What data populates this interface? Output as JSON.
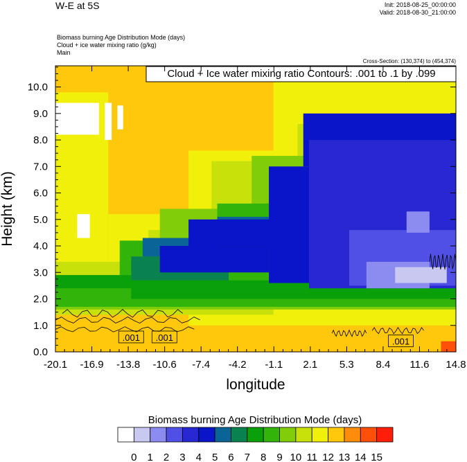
{
  "header": {
    "title": "W-E at 5S",
    "init": "Init: 2018-08-25_00:00:00",
    "valid": "Valid: 2018-08-30_21:00:00",
    "subtitle_lines": [
      "Biomass burning Age Distribution Mode   (days)",
      "Cloud + ice water mixing ratio   (g/kg)",
      "Main"
    ],
    "cross_section": "Cross-Section: (130,374) to (454,374)"
  },
  "chart_data": {
    "type": "heatmap",
    "xlabel": "longitude",
    "ylabel": "Height (km)",
    "x_ticks": [
      "-20.1",
      "-16.9",
      "-13.8",
      "-10.6",
      "-7.4",
      "-4.2",
      "-1.1",
      "2.1",
      "5.3",
      "8.4",
      "11.6",
      "14.8"
    ],
    "y_ticks": [
      "0.0",
      "1.0",
      "2.0",
      "3.0",
      "4.0",
      "5.0",
      "6.0",
      "7.0",
      "8.0",
      "9.0",
      "10.0"
    ],
    "xlim": [
      -20.1,
      14.8
    ],
    "ylim": [
      0,
      10.8
    ],
    "contour_info": "Cloud + Ice water mixing ratio Contours: .001 to .1 by .099",
    "contour_labels": [
      {
        "text": ".001",
        "x": -13.5,
        "y": 0.55
      },
      {
        "text": ".001",
        "x": -10.6,
        "y": 0.55
      },
      {
        "text": ".001",
        "x": 10.0,
        "y": 0.4
      }
    ],
    "colorbar": {
      "title": "Biomass burning Age Distribution Mode  (days)",
      "labels": [
        "0",
        "1",
        "2",
        "3",
        "4",
        "5",
        "6",
        "7",
        "8",
        "9",
        "10",
        "11",
        "12",
        "13",
        "14",
        "15"
      ],
      "colors": [
        "#ffffff",
        "#c8c8f0",
        "#8c8cf0",
        "#5050e6",
        "#2828d2",
        "#0a14c8",
        "#0a6496",
        "#0a8250",
        "#0aa00a",
        "#32b40a",
        "#82cd0a",
        "#c8e10a",
        "#f0f00a",
        "#ffc80a",
        "#ff8c0a",
        "#ff500a",
        "#ff1e0a"
      ]
    },
    "regions": [
      {
        "level": 13,
        "x0": -20.1,
        "x1": 14.8,
        "y0": 0,
        "y1": 10.8
      },
      {
        "level": 12,
        "x0": -20.1,
        "x1": -15.5,
        "y0": 1.6,
        "y1": 9.8
      },
      {
        "level": 12,
        "x0": -15.5,
        "x1": -8.5,
        "y0": 1.6,
        "y1": 5.2
      },
      {
        "level": 12,
        "x0": -8.5,
        "x1": 14.8,
        "y0": 1.0,
        "y1": 7.6
      },
      {
        "level": 12,
        "x0": -1.1,
        "x1": 14.8,
        "y0": 7.0,
        "y1": 10.8
      },
      {
        "level": 11,
        "x0": -20.1,
        "x1": -12.0,
        "y0": 1.4,
        "y1": 3.4
      },
      {
        "level": 11,
        "x0": -12.0,
        "x1": -1.1,
        "y0": 1.4,
        "y1": 4.6
      },
      {
        "level": 11,
        "x0": -6.5,
        "x1": 2.8,
        "y0": 4.6,
        "y1": 7.2
      },
      {
        "level": 11,
        "x0": 1.0,
        "x1": 14.8,
        "y0": 7.2,
        "y1": 8.6
      },
      {
        "level": 10,
        "x0": -20.1,
        "x1": 14.8,
        "y0": 1.6,
        "y1": 2.4
      },
      {
        "level": 10,
        "x0": -11.0,
        "x1": 3.0,
        "y0": 2.4,
        "y1": 5.4
      },
      {
        "level": 10,
        "x0": -3.0,
        "x1": 4.5,
        "y0": 5.4,
        "y1": 7.4
      },
      {
        "level": 9,
        "x0": -20.1,
        "x1": 14.8,
        "y0": 1.7,
        "y1": 2.6
      },
      {
        "level": 9,
        "x0": -14.5,
        "x1": 4.0,
        "y0": 2.6,
        "y1": 4.2
      },
      {
        "level": 9,
        "x0": -6.0,
        "x1": 4.0,
        "y0": 4.2,
        "y1": 5.6
      },
      {
        "level": 8,
        "x0": -20.1,
        "x1": -13.5,
        "y0": 2.4,
        "y1": 2.9
      },
      {
        "level": 8,
        "x0": -13.5,
        "x1": 14.8,
        "y0": 2.0,
        "y1": 2.7
      },
      {
        "level": 7,
        "x0": -13.5,
        "x1": -5.0,
        "y0": 2.7,
        "y1": 3.6
      },
      {
        "level": 6,
        "x0": -12.5,
        "x1": -6.0,
        "y0": 3.6,
        "y1": 4.3
      },
      {
        "level": 6,
        "x0": -6.0,
        "x1": 1.5,
        "y0": 4.3,
        "y1": 5.1
      },
      {
        "level": 5,
        "x0": -11.0,
        "x1": -1.5,
        "y0": 3.0,
        "y1": 4.0
      },
      {
        "level": 5,
        "x0": -8.5,
        "x1": 2.0,
        "y0": 4.0,
        "y1": 5.0
      },
      {
        "level": 5,
        "x0": -1.5,
        "x1": 14.8,
        "y0": 2.6,
        "y1": 7.0
      },
      {
        "level": 5,
        "x0": 1.5,
        "x1": 14.8,
        "y0": 7.0,
        "y1": 9.0
      },
      {
        "level": 4,
        "x0": 2.0,
        "x1": 14.8,
        "y0": 2.4,
        "y1": 8.0
      },
      {
        "level": 3,
        "x0": 5.5,
        "x1": 14.8,
        "y0": 2.5,
        "y1": 4.6
      },
      {
        "level": 2,
        "x0": 7.0,
        "x1": 12.5,
        "y0": 2.4,
        "y1": 3.4
      },
      {
        "level": 2,
        "x0": 10.5,
        "x1": 12.5,
        "y0": 4.5,
        "y1": 5.3
      },
      {
        "level": 1,
        "x0": 9.5,
        "x1": 14.0,
        "y0": 2.6,
        "y1": 3.2
      },
      {
        "level": 0,
        "x0": -20.1,
        "x1": -16.3,
        "y0": 8.2,
        "y1": 9.4
      },
      {
        "level": 0,
        "x0": -15.8,
        "x1": -15.2,
        "y0": 8.0,
        "y1": 9.4
      },
      {
        "level": 0,
        "x0": -14.7,
        "x1": -14.2,
        "y0": 8.4,
        "y1": 9.3
      },
      {
        "level": 0,
        "x0": -18.2,
        "x1": -17.1,
        "y0": 4.3,
        "y1": 5.2
      },
      {
        "level": 15,
        "x0": 13.5,
        "x1": 14.8,
        "y0": 0,
        "y1": 0.4
      }
    ]
  }
}
